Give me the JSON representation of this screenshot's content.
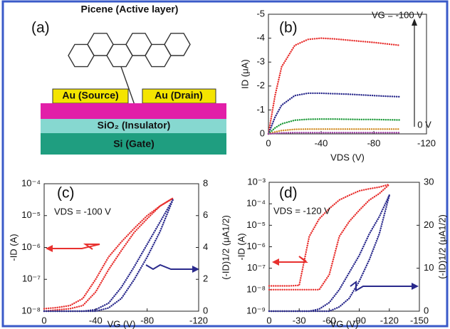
{
  "diagram": {
    "panel_label": "(a)",
    "molecule_label": "Picene (Active layer)",
    "source": "Au (Source)",
    "drain": "Au (Drain)",
    "insulator": "SiO₂ (Insulator)",
    "gate": "Si (Gate)"
  },
  "chart_data": [
    {
      "type": "line",
      "panel_label": "(b)",
      "y_label": "ID (μA)",
      "x_label": "VDS (V)",
      "annotation_top": "VG = -100 V",
      "annotation_bottom": "0 V",
      "xlim": [
        0,
        -120
      ],
      "xticks": [
        0,
        -40,
        -80,
        -120
      ],
      "ylim": [
        0,
        -5
      ],
      "yticks": [
        0,
        -1,
        -2,
        -3,
        -4,
        -5
      ],
      "x": [
        0,
        -5,
        -10,
        -20,
        -30,
        -40,
        -50,
        -60,
        -70,
        -80,
        -90,
        -100
      ],
      "series": [
        {
          "color": "#e8312f",
          "values": [
            0,
            -1.6,
            -2.8,
            -3.7,
            -3.95,
            -4.0,
            -3.97,
            -3.92,
            -3.87,
            -3.82,
            -3.76,
            -3.7
          ]
        },
        {
          "color": "#2a2a8c",
          "values": [
            0,
            -0.7,
            -1.2,
            -1.6,
            -1.7,
            -1.7,
            -1.68,
            -1.66,
            -1.63,
            -1.6,
            -1.57,
            -1.55
          ]
        },
        {
          "color": "#1e9a3a",
          "values": [
            0,
            -0.25,
            -0.42,
            -0.57,
            -0.61,
            -0.62,
            -0.62,
            -0.61,
            -0.6,
            -0.6,
            -0.59,
            -0.58
          ]
        },
        {
          "color": "#d08a20",
          "values": [
            0,
            -0.08,
            -0.14,
            -0.19,
            -0.2,
            -0.2,
            -0.2,
            -0.2,
            -0.2,
            -0.2,
            -0.2,
            -0.2
          ]
        },
        {
          "color": "#9a3aa0",
          "values": [
            0,
            -0.02,
            -0.04,
            -0.05,
            -0.05,
            -0.05,
            -0.05,
            -0.05,
            -0.05,
            -0.05,
            -0.05,
            -0.05
          ]
        }
      ]
    },
    {
      "type": "line",
      "panel_label": "(c)",
      "y_label": "-ID (A)",
      "y2_label": "(-ID)1/2 (μA1/2)",
      "x_label": "VG (V)",
      "annotation_top": "VDS = -100 V",
      "ylog": true,
      "xlim": [
        0,
        -120
      ],
      "xticks": [
        0,
        -40,
        -80,
        -120
      ],
      "ylim": [
        1e-08,
        0.0001
      ],
      "yticks": [
        {
          "value": 1e-08,
          "label": "10⁻⁸"
        },
        {
          "value": 1e-07,
          "label": "10⁻⁷"
        },
        {
          "value": 1e-06,
          "label": "10⁻⁶"
        },
        {
          "value": 1e-05,
          "label": "10⁻⁵"
        },
        {
          "value": 0.0001,
          "label": "10⁻⁴"
        }
      ],
      "y2lim": [
        0,
        8
      ],
      "y2ticks": [
        0,
        2,
        4,
        6,
        8
      ],
      "x": [
        0,
        -10,
        -20,
        -30,
        -40,
        -50,
        -60,
        -70,
        -80,
        -90,
        -100
      ],
      "series": [
        {
          "color": "#e8312f",
          "values": [
            1.2e-08,
            1.3e-08,
            1.5e-08,
            2.5e-08,
            1e-07,
            5e-07,
            1.5e-06,
            4e-06,
            1e-05,
            2e-05,
            3.5e-05
          ]
        },
        {
          "color": "#e8312f",
          "values": [
            1e-08,
            1.1e-08,
            1.2e-08,
            1.5e-08,
            4e-08,
            2e-07,
            8e-07,
            3e-06,
            8e-06,
            2e-05,
            3.5e-05
          ]
        },
        {
          "color": "#2a2a8c",
          "axis": "y2",
          "values": [
            0,
            0,
            0,
            0,
            0.1,
            0.5,
            1.5,
            2.8,
            4.2,
            5.6,
            7.0
          ]
        },
        {
          "color": "#2a2a8c",
          "axis": "y2",
          "values": [
            0,
            0,
            0,
            0,
            0,
            0.2,
            0.8,
            2.0,
            3.4,
            5.0,
            7.0
          ]
        }
      ]
    },
    {
      "type": "line",
      "panel_label": "(d)",
      "y_label": "-ID (A)",
      "y2_label": "(-ID)1/2 (μA1/2)",
      "x_label": "VG (V)",
      "annotation_top": "VDS = -120 V",
      "ylog": true,
      "xlim": [
        0,
        -150
      ],
      "xticks": [
        0,
        -30,
        -60,
        -90,
        -120,
        -150
      ],
      "ylim": [
        1e-09,
        0.001
      ],
      "yticks": [
        {
          "value": 1e-09,
          "label": "10⁻⁹"
        },
        {
          "value": 1e-08,
          "label": "10⁻⁸"
        },
        {
          "value": 1e-07,
          "label": "10⁻⁷"
        },
        {
          "value": 1e-06,
          "label": "10⁻⁶"
        },
        {
          "value": 1e-05,
          "label": "10⁻⁵"
        },
        {
          "value": 0.0001,
          "label": "10⁻⁴"
        },
        {
          "value": 0.001,
          "label": "10⁻³"
        }
      ],
      "y2lim": [
        0,
        30
      ],
      "y2ticks": [
        0,
        10,
        20,
        30
      ],
      "x": [
        0,
        -10,
        -20,
        -30,
        -40,
        -50,
        -60,
        -70,
        -80,
        -90,
        -100,
        -110,
        -120
      ],
      "series": [
        {
          "color": "#e8312f",
          "values": [
            1.5e-08,
            1.5e-08,
            1.5e-08,
            1.6e-08,
            3e-06,
            2e-05,
            6e-05,
            0.00015,
            0.00025,
            0.0004,
            0.0005,
            0.0006,
            0.0008
          ]
        },
        {
          "color": "#e8312f",
          "values": [
            1e-08,
            1e-08,
            1e-08,
            1e-08,
            1e-08,
            1e-08,
            5e-08,
            3e-06,
            1.5e-05,
            5e-05,
            0.00015,
            0.0003,
            0.0008
          ]
        },
        {
          "color": "#2a2a8c",
          "axis": "y2",
          "values": [
            0,
            0,
            0,
            0,
            0,
            0.5,
            2,
            5,
            9,
            13,
            18,
            22,
            27
          ]
        },
        {
          "color": "#2a2a8c",
          "axis": "y2",
          "values": [
            0,
            0,
            0,
            0,
            0,
            0,
            0,
            1,
            3,
            7,
            12,
            18,
            27
          ]
        }
      ]
    }
  ]
}
